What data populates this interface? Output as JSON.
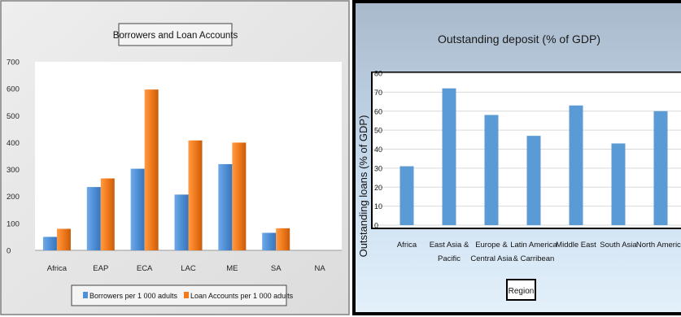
{
  "chart_data": [
    {
      "type": "bar",
      "title": "Borrowers and Loan Accounts",
      "xlabel": "",
      "ylabel": "",
      "categories": [
        "Africa",
        "EAP",
        "ECA",
        "LAC",
        "ME",
        "SA",
        "NA"
      ],
      "series": [
        {
          "name": "Borrowers per 1 000 adults",
          "values": [
            50,
            235,
            303,
            207,
            320,
            65,
            null
          ],
          "color": "#4f8fd6"
        },
        {
          "name": "Loan Accounts per 1 000 adults",
          "values": [
            80,
            267,
            597,
            408,
            400,
            82,
            null
          ],
          "color": "#f07a1c"
        }
      ],
      "ylim": [
        0,
        700
      ],
      "yticks": [
        "0",
        "100",
        "200",
        "300",
        "400",
        "500",
        "600",
        "700"
      ],
      "grid": false,
      "legend_position": "bottom"
    },
    {
      "type": "bar",
      "title": "Outstanding deposit (% of GDP)",
      "xlabel": "Region",
      "ylabel": "Outstanding loans (% of GDP)",
      "categories": [
        [
          "Africa"
        ],
        [
          "East Asia &",
          "Pacific"
        ],
        [
          "Europe &",
          "Central Asia"
        ],
        [
          "Latin America",
          "& Carribean"
        ],
        [
          "Middle East"
        ],
        [
          "South Asia"
        ],
        [
          "North America"
        ]
      ],
      "series": [
        {
          "values": [
            31,
            72,
            58,
            47,
            63,
            43,
            60
          ],
          "color": "#5b9bd5"
        }
      ],
      "ylim": [
        0,
        80
      ],
      "yticks": [
        "0",
        "10",
        "20",
        "30",
        "40",
        "50",
        "60",
        "70",
        "80"
      ],
      "grid": true,
      "legend_position": "none"
    }
  ]
}
